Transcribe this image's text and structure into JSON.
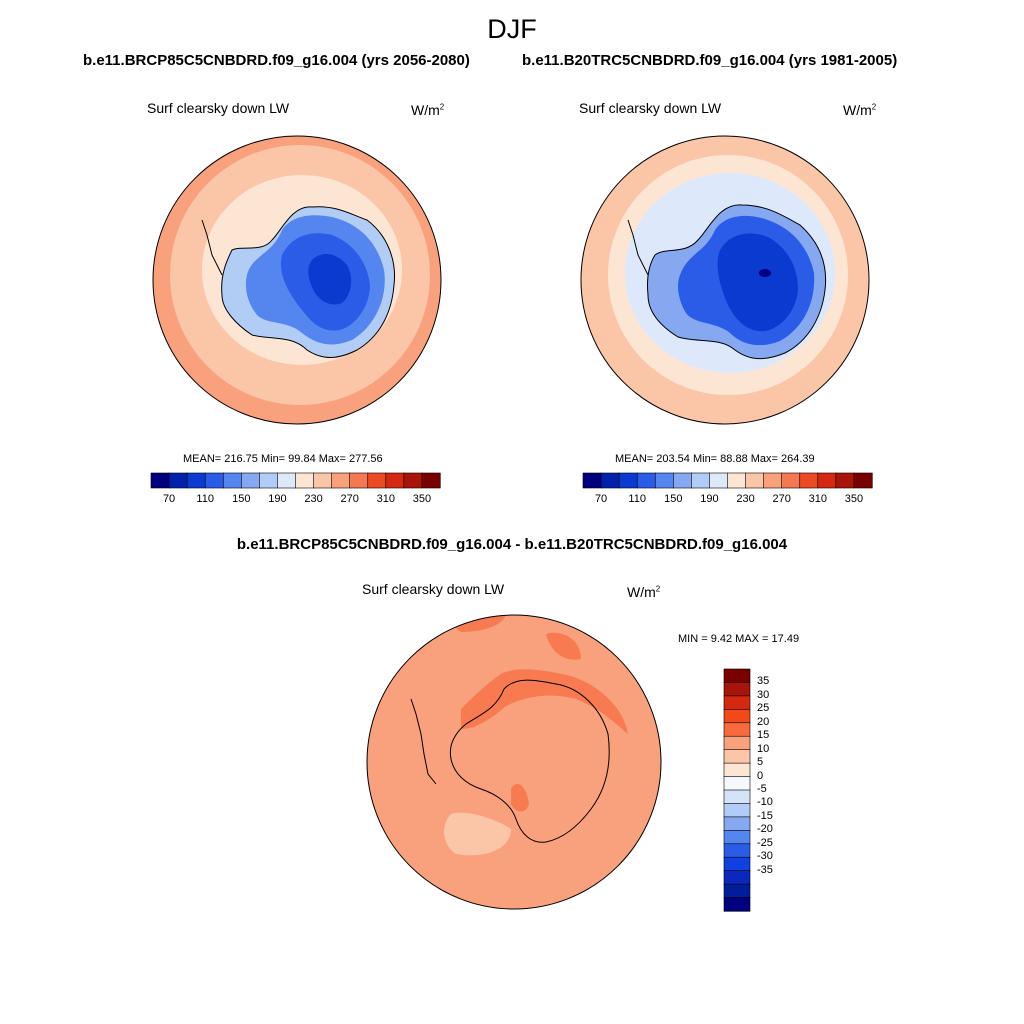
{
  "page": {
    "season": "DJF",
    "case_a": "b.e11.BRCP85C5CNBDRD.f09_g16.004 (yrs 2056-2080)",
    "case_b": "b.e11.B20TRC5CNBDRD.f09_g16.004 (yrs 1981-2005)",
    "diff_title": "b.e11.BRCP85C5CNBDRD.f09_g16.004 - b.e11.B20TRC5CNBDRD.f09_g16.004"
  },
  "panels": {
    "a": {
      "variable": "Surf clearsky down LW",
      "units_base": "W/m",
      "units_exp": "2",
      "stats": "MEAN= 216.75  Min=  99.84  Max= 277.56"
    },
    "b": {
      "variable": "Surf clearsky down LW",
      "units_base": "W/m",
      "units_exp": "2",
      "stats": "MEAN= 203.54  Min=  88.88  Max= 264.39"
    },
    "diff": {
      "variable": "Surf clearsky down LW",
      "units_base": "W/m",
      "units_exp": "2",
      "stats": "MIN =   9.42 MAX =  17.49"
    }
  },
  "colorbar_h": {
    "colors": [
      "#00007f",
      "#0022aa",
      "#0a3ad0",
      "#2a5ce8",
      "#5585ee",
      "#85a8f0",
      "#b2cdf5",
      "#dde9fb",
      "#fde5d3",
      "#fbc6a8",
      "#f8a17c",
      "#f47852",
      "#ec4a22",
      "#d42810",
      "#a81408",
      "#7a0000"
    ],
    "tick_labels": [
      "70",
      "110",
      "150",
      "190",
      "230",
      "270",
      "310",
      "350"
    ],
    "tick_box_index": [
      1,
      3,
      5,
      7,
      9,
      11,
      13,
      15
    ]
  },
  "colorbar_v": {
    "colors": [
      "#7a0000",
      "#a81408",
      "#d42810",
      "#f34818",
      "#f76a3c",
      "#f8a17c",
      "#fbc6a8",
      "#fde5d3",
      "#f5f8fe",
      "#d3e3f9",
      "#b2cdf5",
      "#85a8f0",
      "#5585ee",
      "#2a5ce8",
      "#1040e0",
      "#0a28c0",
      "#001e9a",
      "#00007f"
    ],
    "tick_labels": [
      "35",
      "30",
      "25",
      "20",
      "15",
      "10",
      "5",
      "0",
      "-5",
      "-10",
      "-15",
      "-20",
      "-25",
      "-30",
      "-35"
    ]
  },
  "chart_data": [
    {
      "type": "heatmap",
      "title": "Surf clearsky down LW",
      "subtitle": "b.e11.BRCP85C5CNBDRD.f09_g16.004 (yrs 2056-2080)",
      "season": "DJF",
      "units": "W/m2",
      "mean": 216.75,
      "min": 99.84,
      "max": 277.56,
      "levels": [
        70,
        90,
        110,
        130,
        150,
        170,
        190,
        210,
        230,
        250,
        270,
        290,
        310,
        330,
        350
      ]
    },
    {
      "type": "heatmap",
      "title": "Surf clearsky down LW",
      "subtitle": "b.e11.B20TRC5CNBDRD.f09_g16.004 (yrs 1981-2005)",
      "season": "DJF",
      "units": "W/m2",
      "mean": 203.54,
      "min": 88.88,
      "max": 264.39,
      "levels": [
        70,
        90,
        110,
        130,
        150,
        170,
        190,
        210,
        230,
        250,
        270,
        290,
        310,
        330,
        350
      ]
    },
    {
      "type": "heatmap",
      "title": "Surf clearsky down LW",
      "subtitle": "b.e11.BRCP85C5CNBDRD.f09_g16.004 - b.e11.B20TRC5CNBDRD.f09_g16.004",
      "season": "DJF",
      "units": "W/m2",
      "min": 9.42,
      "max": 17.49,
      "levels": [
        -35,
        -30,
        -25,
        -20,
        -15,
        -10,
        -5,
        0,
        5,
        10,
        15,
        20,
        25,
        30,
        35
      ]
    }
  ]
}
